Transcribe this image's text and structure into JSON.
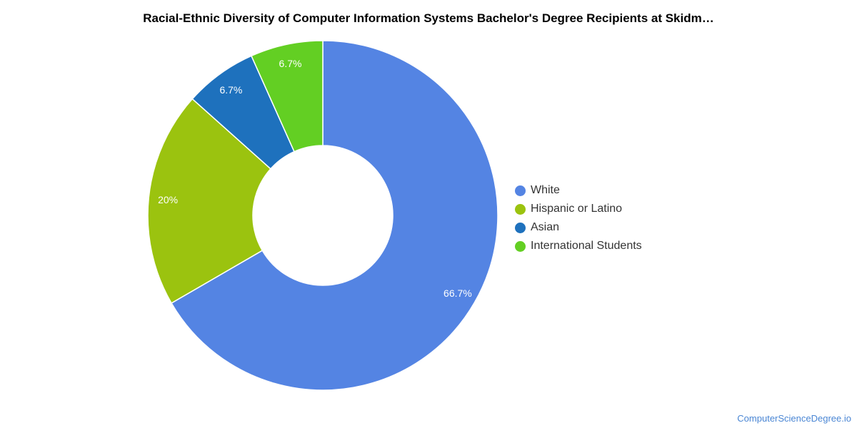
{
  "title": "Racial-Ethnic Diversity of Computer Information Systems Bachelor's Degree Recipients at Skidm…",
  "footer": "ComputerScienceDegree.io",
  "chart_data": {
    "type": "pie",
    "donut": true,
    "legend_position": "right",
    "slices": [
      {
        "label": "White",
        "value": 66.7,
        "display": "66.7%",
        "color": "#5484e3"
      },
      {
        "label": "Hispanic or Latino",
        "value": 20,
        "display": "20%",
        "color": "#9bc30f"
      },
      {
        "label": "Asian",
        "value": 6.7,
        "display": "6.7%",
        "color": "#1e71bd"
      },
      {
        "label": "International Students",
        "value": 6.7,
        "display": "6.7%",
        "color": "#63cf23"
      }
    ]
  }
}
